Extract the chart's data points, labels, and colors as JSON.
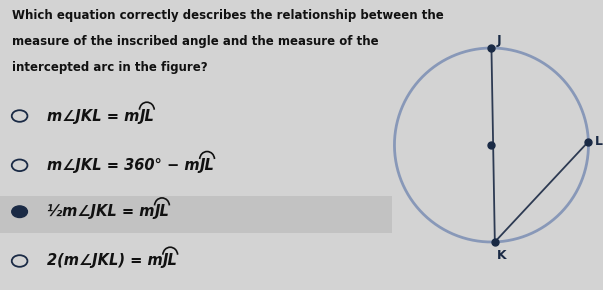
{
  "bg_color": "#d3d3d3",
  "question_text_lines": [
    "Which equation correctly describes the relationship between the",
    "measure of the inscribed angle and the measure of the",
    "intercepted arc in the figure?"
  ],
  "options": [
    {
      "main": "m∠JKL = m",
      "arc": "JL",
      "selected": false
    },
    {
      "main": "m∠JKL = 360° − m",
      "arc": "JL",
      "selected": false
    },
    {
      "main": "½m∠JKL = m",
      "arc": "JL",
      "selected": true
    },
    {
      "main": "2(m∠JKL) = m",
      "arc": "JL",
      "selected": false
    }
  ],
  "selected_bg": "#c2c2c2",
  "text_color": "#111111",
  "radio_color": "#1a2a45",
  "circle_color": "#8898b8",
  "line_color": "#2d3a52",
  "dot_color": "#1a2a45",
  "question_fontsize": 8.5,
  "option_fontsize": 10.5
}
